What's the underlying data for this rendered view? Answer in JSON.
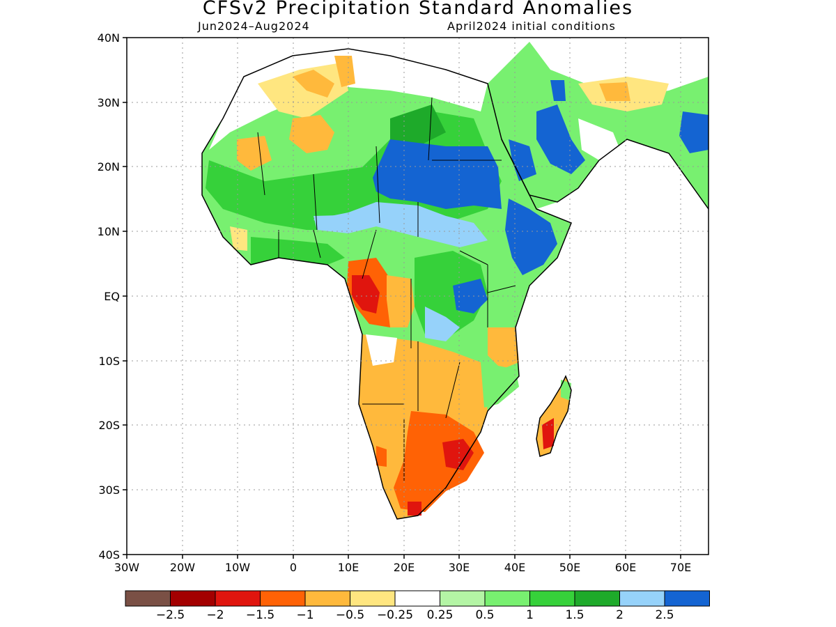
{
  "title": "CFSv2 Precipitation Standard Anomalies",
  "subtitle_left": "Jun2024–Aug2024",
  "subtitle_right": "April2024 initial conditions",
  "map": {
    "lat_labels": [
      "40N",
      "30N",
      "20N",
      "10N",
      "EQ",
      "10S",
      "20S",
      "30S",
      "40S"
    ],
    "lon_labels": [
      "30W",
      "20W",
      "10W",
      "0",
      "10E",
      "20E",
      "30E",
      "40E",
      "50E",
      "60E",
      "70E"
    ],
    "lat_range": [
      -40,
      40
    ],
    "lon_range": [
      -30,
      75
    ],
    "grid": "dotted"
  },
  "colorbar": {
    "colors": [
      "#7a5045",
      "#a30000",
      "#e0150e",
      "#ff6205",
      "#ffb93c",
      "#ffe680",
      "#ffffff",
      "#b4f5a5",
      "#78f070",
      "#36d13a",
      "#1eaa2a",
      "#96d2fa",
      "#1464d2"
    ],
    "labels": [
      "−2.5",
      "−2",
      "−1.5",
      "−1",
      "−0.5",
      "−0.25",
      "0.25",
      "0.5",
      "1",
      "1.5",
      "2",
      "2.5"
    ]
  }
}
